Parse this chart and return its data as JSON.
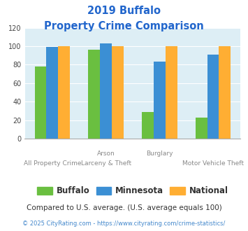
{
  "title_line1": "2019 Buffalo",
  "title_line2": "Property Crime Comparison",
  "title_color": "#2266cc",
  "buffalo": [
    78,
    96,
    29,
    23
  ],
  "minnesota": [
    99,
    103,
    83,
    91
  ],
  "national": [
    100,
    100,
    100,
    100
  ],
  "buffalo_color": "#6abf40",
  "minnesota_color": "#3b8fd4",
  "national_color": "#ffae33",
  "ylim": [
    0,
    120
  ],
  "yticks": [
    0,
    20,
    40,
    60,
    80,
    100,
    120
  ],
  "legend_labels": [
    "Buffalo",
    "Minnesota",
    "National"
  ],
  "legend_text_color": "#333333",
  "top_labels": [
    "",
    "Arson",
    "Burglary",
    ""
  ],
  "bot_labels": [
    "All Property Crime",
    "Larceny & Theft",
    "",
    "Motor Vehicle Theft"
  ],
  "footnote1": "Compared to U.S. average. (U.S. average equals 100)",
  "footnote2": "© 2025 CityRating.com - https://www.cityrating.com/crime-statistics/",
  "footnote1_color": "#333333",
  "footnote2_color": "#4488cc",
  "bg_color": "#ddeef5",
  "bar_width": 0.22
}
